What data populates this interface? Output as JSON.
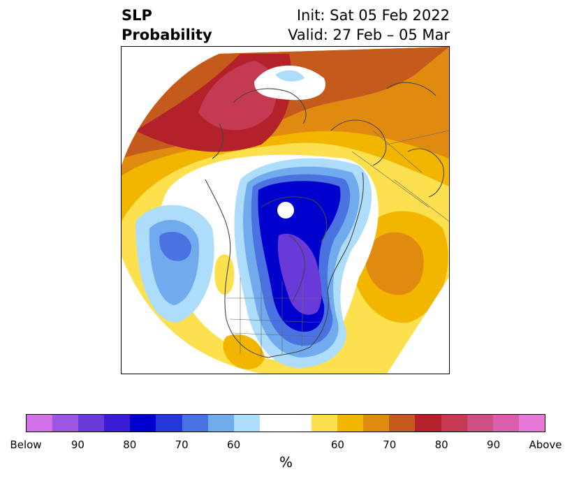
{
  "header": {
    "title_line1": "SLP",
    "title_line2": "Probability",
    "init_text": "Init: Sat 05 Feb 2022",
    "valid_text": "Valid: 27 Feb – 05 Mar"
  },
  "colorbar": {
    "colors": [
      "#d170e8",
      "#9d56e0",
      "#6a3ad9",
      "#3a1cd4",
      "#0000cc",
      "#2438d8",
      "#4a72e0",
      "#72aaee",
      "#aedcfb",
      "#ffffff",
      "#ffffff",
      "#fde04d",
      "#f2b600",
      "#e08a10",
      "#c45a1c",
      "#b3222a",
      "#c43a52",
      "#cd5085",
      "#da5eac",
      "#e679d8"
    ],
    "tick_labels": [
      "Below",
      "90",
      "80",
      "70",
      "60",
      "",
      "60",
      "70",
      "80",
      "90",
      "Above"
    ],
    "unit_label": "%"
  },
  "map": {
    "projection": "north-polar-stereographic",
    "region": "Northern Hemisphere / North America",
    "below_palette": [
      "#aedcfb",
      "#72aaee",
      "#4a72e0",
      "#2438d8",
      "#0000cc",
      "#6a3ad9"
    ],
    "above_palette": [
      "#fde04d",
      "#f2b600",
      "#e08a10",
      "#c45a1c",
      "#b3222a",
      "#c43a52"
    ]
  }
}
